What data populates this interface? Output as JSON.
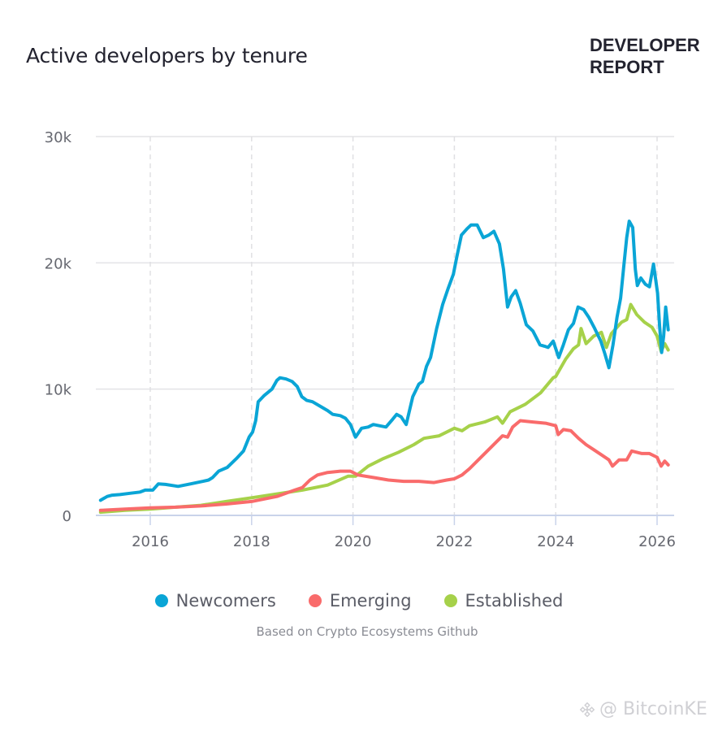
{
  "header": {
    "title": "Active developers by tenure",
    "brand_line1": "DEVELOPER",
    "brand_line2": "REPORT"
  },
  "legend": [
    {
      "name": "Newcomers",
      "color": "#0aa5d6"
    },
    {
      "name": "Emerging",
      "color": "#f96b6b"
    },
    {
      "name": "Established",
      "color": "#a6d14a"
    }
  ],
  "source_note": "Based on Crypto Ecosystems Github",
  "watermark": {
    "icon": "binance-logo-icon",
    "text": "@ BitcoinKE"
  },
  "chart_data": {
    "type": "line",
    "title": "Active developers by tenure",
    "xlabel": "",
    "ylabel": "",
    "xlim": [
      2015.0,
      2026.35
    ],
    "ylim": [
      0,
      30000
    ],
    "x_ticks": [
      2016,
      2018,
      2020,
      2022,
      2024,
      2026
    ],
    "x_tick_labels": [
      "2016",
      "2018",
      "2020",
      "2022",
      "2024",
      "2026"
    ],
    "y_ticks": [
      0,
      10000,
      20000,
      30000
    ],
    "y_tick_labels": [
      "0",
      "10k",
      "20k",
      "30k"
    ],
    "grid": {
      "horizontal": "solid",
      "vertical": "dashed"
    },
    "legend_position": "bottom",
    "series": [
      {
        "name": "Newcomers",
        "color": "#0aa5d6",
        "points": [
          [
            2015.02,
            1200
          ],
          [
            2015.15,
            1500
          ],
          [
            2015.25,
            1600
          ],
          [
            2015.4,
            1650
          ],
          [
            2015.6,
            1750
          ],
          [
            2015.8,
            1850
          ],
          [
            2015.9,
            2000
          ],
          [
            2016.05,
            2000
          ],
          [
            2016.16,
            2500
          ],
          [
            2016.3,
            2450
          ],
          [
            2016.55,
            2300
          ],
          [
            2016.8,
            2500
          ],
          [
            2017.04,
            2700
          ],
          [
            2017.15,
            2800
          ],
          [
            2017.23,
            3000
          ],
          [
            2017.35,
            3500
          ],
          [
            2017.52,
            3800
          ],
          [
            2017.7,
            4500
          ],
          [
            2017.84,
            5100
          ],
          [
            2017.95,
            6200
          ],
          [
            2018.02,
            6600
          ],
          [
            2018.08,
            7500
          ],
          [
            2018.13,
            9000
          ],
          [
            2018.25,
            9500
          ],
          [
            2018.4,
            10000
          ],
          [
            2018.5,
            10700
          ],
          [
            2018.56,
            10900
          ],
          [
            2018.68,
            10800
          ],
          [
            2018.8,
            10600
          ],
          [
            2018.9,
            10200
          ],
          [
            2018.99,
            9400
          ],
          [
            2019.09,
            9100
          ],
          [
            2019.2,
            9000
          ],
          [
            2019.37,
            8600
          ],
          [
            2019.5,
            8300
          ],
          [
            2019.6,
            8000
          ],
          [
            2019.75,
            7900
          ],
          [
            2019.85,
            7700
          ],
          [
            2019.95,
            7200
          ],
          [
            2020.05,
            6200
          ],
          [
            2020.17,
            6900
          ],
          [
            2020.3,
            7000
          ],
          [
            2020.4,
            7200
          ],
          [
            2020.52,
            7100
          ],
          [
            2020.65,
            7000
          ],
          [
            2020.78,
            7600
          ],
          [
            2020.86,
            8000
          ],
          [
            2020.95,
            7800
          ],
          [
            2021.05,
            7200
          ],
          [
            2021.18,
            9400
          ],
          [
            2021.3,
            10400
          ],
          [
            2021.37,
            10600
          ],
          [
            2021.45,
            11800
          ],
          [
            2021.53,
            12500
          ],
          [
            2021.65,
            14800
          ],
          [
            2021.77,
            16700
          ],
          [
            2021.88,
            18000
          ],
          [
            2021.98,
            19100
          ],
          [
            2022.05,
            20500
          ],
          [
            2022.14,
            22200
          ],
          [
            2022.25,
            22700
          ],
          [
            2022.33,
            23000
          ],
          [
            2022.45,
            23000
          ],
          [
            2022.57,
            22000
          ],
          [
            2022.68,
            22200
          ],
          [
            2022.78,
            22500
          ],
          [
            2022.89,
            21500
          ],
          [
            2022.97,
            19500
          ],
          [
            2023.05,
            16500
          ],
          [
            2023.12,
            17300
          ],
          [
            2023.21,
            17800
          ],
          [
            2023.3,
            16800
          ],
          [
            2023.42,
            15100
          ],
          [
            2023.55,
            14600
          ],
          [
            2023.69,
            13500
          ],
          [
            2023.78,
            13400
          ],
          [
            2023.85,
            13300
          ],
          [
            2023.95,
            13800
          ],
          [
            2024.06,
            12500
          ],
          [
            2024.15,
            13500
          ],
          [
            2024.25,
            14700
          ],
          [
            2024.35,
            15200
          ],
          [
            2024.44,
            16500
          ],
          [
            2024.55,
            16300
          ],
          [
            2024.65,
            15700
          ],
          [
            2024.77,
            14800
          ],
          [
            2024.89,
            13800
          ],
          [
            2024.97,
            12800
          ],
          [
            2025.05,
            11700
          ],
          [
            2025.13,
            13500
          ],
          [
            2025.21,
            15700
          ],
          [
            2025.28,
            17200
          ],
          [
            2025.34,
            19600
          ],
          [
            2025.4,
            22000
          ],
          [
            2025.45,
            23300
          ],
          [
            2025.52,
            22800
          ],
          [
            2025.57,
            19500
          ],
          [
            2025.61,
            18200
          ],
          [
            2025.68,
            18800
          ],
          [
            2025.77,
            18300
          ],
          [
            2025.85,
            18100
          ],
          [
            2025.93,
            19900
          ],
          [
            2026.01,
            17600
          ],
          [
            2026.05,
            15000
          ],
          [
            2026.09,
            12900
          ],
          [
            2026.13,
            14200
          ],
          [
            2026.17,
            16500
          ],
          [
            2026.22,
            14700
          ]
        ]
      },
      {
        "name": "Emerging",
        "color": "#f96b6b",
        "points": [
          [
            2015.02,
            400
          ],
          [
            2015.5,
            500
          ],
          [
            2016.0,
            600
          ],
          [
            2016.5,
            650
          ],
          [
            2017.0,
            750
          ],
          [
            2017.5,
            900
          ],
          [
            2018.0,
            1100
          ],
          [
            2018.5,
            1500
          ],
          [
            2018.85,
            2000
          ],
          [
            2019.0,
            2200
          ],
          [
            2019.15,
            2800
          ],
          [
            2019.3,
            3200
          ],
          [
            2019.5,
            3400
          ],
          [
            2019.75,
            3500
          ],
          [
            2019.95,
            3500
          ],
          [
            2020.1,
            3200
          ],
          [
            2020.4,
            3000
          ],
          [
            2020.7,
            2800
          ],
          [
            2021.0,
            2700
          ],
          [
            2021.3,
            2700
          ],
          [
            2021.6,
            2600
          ],
          [
            2021.85,
            2800
          ],
          [
            2022.0,
            2900
          ],
          [
            2022.15,
            3200
          ],
          [
            2022.3,
            3700
          ],
          [
            2022.5,
            4500
          ],
          [
            2022.75,
            5500
          ],
          [
            2022.95,
            6300
          ],
          [
            2023.05,
            6200
          ],
          [
            2023.15,
            7000
          ],
          [
            2023.3,
            7500
          ],
          [
            2023.55,
            7400
          ],
          [
            2023.8,
            7300
          ],
          [
            2024.0,
            7100
          ],
          [
            2024.05,
            6400
          ],
          [
            2024.15,
            6800
          ],
          [
            2024.3,
            6700
          ],
          [
            2024.45,
            6100
          ],
          [
            2024.6,
            5600
          ],
          [
            2024.75,
            5200
          ],
          [
            2024.9,
            4800
          ],
          [
            2025.05,
            4400
          ],
          [
            2025.12,
            3900
          ],
          [
            2025.25,
            4400
          ],
          [
            2025.4,
            4400
          ],
          [
            2025.5,
            5100
          ],
          [
            2025.7,
            4900
          ],
          [
            2025.85,
            4900
          ],
          [
            2026.0,
            4600
          ],
          [
            2026.08,
            3900
          ],
          [
            2026.15,
            4300
          ],
          [
            2026.22,
            4000
          ]
        ]
      },
      {
        "name": "Established",
        "color": "#a6d14a",
        "points": [
          [
            2015.02,
            250
          ],
          [
            2015.5,
            400
          ],
          [
            2016.0,
            500
          ],
          [
            2016.5,
            650
          ],
          [
            2017.0,
            800
          ],
          [
            2017.5,
            1100
          ],
          [
            2018.0,
            1400
          ],
          [
            2018.5,
            1700
          ],
          [
            2019.0,
            2000
          ],
          [
            2019.5,
            2400
          ],
          [
            2019.9,
            3100
          ],
          [
            2020.05,
            3100
          ],
          [
            2020.3,
            3900
          ],
          [
            2020.6,
            4500
          ],
          [
            2020.9,
            5000
          ],
          [
            2021.2,
            5600
          ],
          [
            2021.4,
            6100
          ],
          [
            2021.7,
            6300
          ],
          [
            2022.0,
            6900
          ],
          [
            2022.15,
            6700
          ],
          [
            2022.3,
            7100
          ],
          [
            2022.6,
            7400
          ],
          [
            2022.85,
            7800
          ],
          [
            2022.95,
            7300
          ],
          [
            2023.1,
            8200
          ],
          [
            2023.4,
            8800
          ],
          [
            2023.7,
            9700
          ],
          [
            2023.95,
            10900
          ],
          [
            2024.0,
            11000
          ],
          [
            2024.2,
            12400
          ],
          [
            2024.35,
            13200
          ],
          [
            2024.45,
            13500
          ],
          [
            2024.5,
            14800
          ],
          [
            2024.6,
            13600
          ],
          [
            2024.75,
            14200
          ],
          [
            2024.9,
            14500
          ],
          [
            2025.0,
            13300
          ],
          [
            2025.1,
            14400
          ],
          [
            2025.3,
            15300
          ],
          [
            2025.4,
            15500
          ],
          [
            2025.48,
            16700
          ],
          [
            2025.6,
            15900
          ],
          [
            2025.75,
            15300
          ],
          [
            2025.9,
            14900
          ],
          [
            2026.0,
            14200
          ],
          [
            2026.08,
            13000
          ],
          [
            2026.15,
            13600
          ],
          [
            2026.22,
            13100
          ]
        ]
      }
    ]
  }
}
